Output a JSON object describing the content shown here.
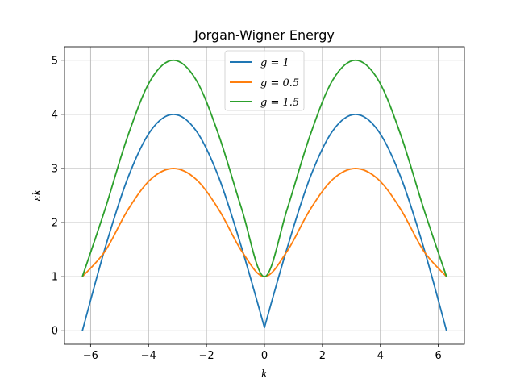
{
  "chart_data": {
    "type": "line",
    "title": "Jorgan-Wigner Energy",
    "xlabel": "k",
    "ylabel": "εk",
    "xlim": [
      -6.9,
      6.9
    ],
    "ylim": [
      -0.25,
      5.25
    ],
    "xticks": [
      -6,
      -4,
      -2,
      0,
      2,
      4,
      6
    ],
    "xtick_labels": [
      "−6",
      "−4",
      "−2",
      "0",
      "2",
      "4",
      "6"
    ],
    "yticks": [
      0,
      1,
      2,
      3,
      4,
      5
    ],
    "ytick_labels": [
      "0",
      "1",
      "2",
      "3",
      "4",
      "5"
    ],
    "grid": true,
    "legend_position": "top-center",
    "series": [
      {
        "name": "g = 1",
        "color": "#1f77b4",
        "x": [
          -6.283,
          -5.498,
          -4.712,
          -3.927,
          -3.142,
          -2.356,
          -1.571,
          -0.785,
          0.0,
          0.785,
          1.571,
          2.356,
          3.142,
          3.927,
          4.712,
          5.498,
          6.283
        ],
        "values": [
          0.0,
          1.531,
          2.828,
          3.696,
          4.0,
          3.696,
          2.828,
          1.531,
          0.06,
          1.531,
          2.828,
          3.696,
          4.0,
          3.696,
          2.828,
          1.531,
          0.0
        ]
      },
      {
        "name": "g = 0.5",
        "color": "#ff7f0e",
        "x": [
          -6.283,
          -5.498,
          -4.712,
          -3.927,
          -3.142,
          -2.356,
          -1.571,
          -0.785,
          0.0,
          0.785,
          1.571,
          2.356,
          3.142,
          3.927,
          4.712,
          5.498,
          6.283
        ],
        "values": [
          1.0,
          1.472,
          2.236,
          2.798,
          3.0,
          2.798,
          2.236,
          1.472,
          1.0,
          1.472,
          2.236,
          2.798,
          3.0,
          2.798,
          2.236,
          1.472,
          1.0
        ]
      },
      {
        "name": "g = 1.5",
        "color": "#2ca02c",
        "x": [
          -6.283,
          -5.498,
          -4.712,
          -3.927,
          -3.142,
          -2.356,
          -1.571,
          -0.785,
          0.0,
          0.785,
          1.571,
          2.356,
          3.142,
          3.927,
          4.712,
          5.498,
          6.283
        ],
        "values": [
          1.0,
          2.25,
          3.606,
          4.634,
          5.0,
          4.634,
          3.606,
          2.25,
          1.0,
          2.25,
          3.606,
          4.634,
          5.0,
          4.634,
          3.606,
          2.25,
          1.0
        ]
      }
    ]
  }
}
